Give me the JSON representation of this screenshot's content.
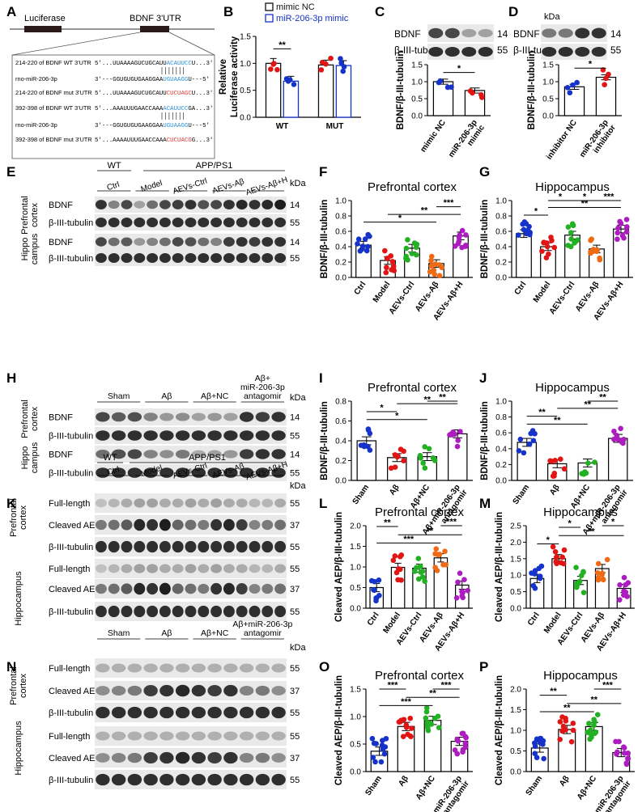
{
  "panel_letters": [
    "A",
    "B",
    "C",
    "D",
    "E",
    "F",
    "G",
    "H",
    "I",
    "J",
    "K",
    "L",
    "M",
    "N",
    "O",
    "P"
  ],
  "colors": {
    "blue": "#1533c9",
    "red": "#e21515",
    "green": "#22b122",
    "orange": "#ee6b14",
    "purple": "#ad1cc1",
    "black": "#111111",
    "seq_blue": "#2a8fd4",
    "seq_red": "#e23a3a",
    "band": "#1e1e1e",
    "blot_bg": "#e9e9e9"
  },
  "icons": [
    "luciferase-gene-bar",
    "utr-bar",
    "western-blot"
  ],
  "panelA": {
    "luciferase": "Luciferase",
    "utr": "BDNF 3'UTR",
    "rows": [
      {
        "label": "214-220 of BDNF WT 3'UTR",
        "pre": "5'...UUAAAAGUCUGCAUU",
        "site": "ACAUUCC",
        "post": "U...3'",
        "site_color": "blue"
      },
      {
        "label": "rno-miR-206-3p",
        "pre": "3'---GGUGUGUGAAGGAA",
        "site": "UGUAAGG",
        "post": "U---5'",
        "site_color": "blue"
      },
      {
        "label": "214-220 of BDNF mut 3'UTR",
        "pre": "5'...UUAAAAGUCUGCAUU",
        "site": "CUCUAGC",
        "post": "U...3'",
        "site_color": "red"
      },
      {
        "label": "392-398 of BDNF  WT 3'UTR",
        "pre": "5'...AAAUUUGAACCAAA",
        "site": "ACAUUCC",
        "post": "GA...3'",
        "site_color": "blue"
      },
      {
        "label": "rno-miR-206-3p",
        "pre": "3'---GGUGUGUGAAGGAA",
        "site": "UGUAAGG",
        "post": "U---5'",
        "site_color": "blue"
      },
      {
        "label": "392-398 of BDNF mut 3'UTR",
        "pre": "5'...AAAAUUUGAACCAAA",
        "site": "CUCUACG",
        "post": "G...3'",
        "site_color": "red"
      }
    ]
  },
  "blots": {
    "kda": "kDa",
    "C": {
      "bands": [
        {
          "name": "BDNF",
          "kda": "14"
        },
        {
          "name": "β-III-tubulin",
          "kda": "55"
        }
      ]
    },
    "D": {
      "bands": [
        {
          "name": "BDNF",
          "kda": "14"
        },
        {
          "name": "β-III-tubulin",
          "kda": "55"
        }
      ]
    },
    "E": {
      "top_groups": [
        "WT",
        "APP/PS1"
      ],
      "lanes": [
        "Ctrl",
        "Model",
        "AEVs-Ctrl",
        "AEVs-Aβ",
        "AEVs-Aβ+H"
      ],
      "regions": [
        "Prefrontal cortex",
        "Hippo campus"
      ],
      "bands": [
        {
          "name": "BDNF",
          "kda": "14"
        },
        {
          "name": "β-III-tubulin",
          "kda": "55"
        },
        {
          "name": "BDNF",
          "kda": "14"
        },
        {
          "name": "β-III-tubulin",
          "kda": "55"
        }
      ]
    },
    "H": {
      "lanes": [
        "Sham",
        "Aβ",
        "Aβ+NC",
        "Aβ+ miR-206-3p antagomir"
      ],
      "regions": [
        "Prefrontal cortex",
        "Hippo campus"
      ],
      "bands": [
        {
          "name": "BDNF",
          "kda": "14"
        },
        {
          "name": "β-III-tubulin",
          "kda": "55"
        },
        {
          "name": "BDNF",
          "kda": "14"
        },
        {
          "name": "β-III-tubulin",
          "kda": "55"
        }
      ]
    },
    "K": {
      "top_groups": [
        "WT",
        "APP/PS1"
      ],
      "lanes": [
        "Ctrl",
        "Model",
        "AEVs-Ctrl",
        "AEVs-Aβ",
        "AEVs-Aβ+H"
      ],
      "regions": [
        "Prefrontal cortex",
        "Hippocampus"
      ],
      "bands": [
        {
          "name": "Full-length",
          "kda": "55"
        },
        {
          "name": "Cleaved AEP",
          "kda": "37"
        },
        {
          "name": "β-III-tubulin",
          "kda": "55"
        },
        {
          "name": "Full-length",
          "kda": "55"
        },
        {
          "name": "Cleaved AEP",
          "kda": "37"
        },
        {
          "name": "β-III-tubulin",
          "kda": "55"
        }
      ]
    },
    "N": {
      "lanes": [
        "Sham",
        "Aβ",
        "Aβ+NC",
        "Aβ+miR-206-3p antagomir"
      ],
      "regions": [
        "Prefrontal cortex",
        "Hippocampus"
      ],
      "bands": [
        {
          "name": "Full-length",
          "kda": "55"
        },
        {
          "name": "Cleaved AEP",
          "kda": "37"
        },
        {
          "name": "β-III-tubulin",
          "kda": "55"
        },
        {
          "name": "Full-length",
          "kda": "55"
        },
        {
          "name": "Cleaved AEP",
          "kda": "37"
        },
        {
          "name": "β-III-tubulin",
          "kda": "55"
        }
      ]
    }
  },
  "chart_data": [
    {
      "panel": "B",
      "type": "bar",
      "ylabel": "Relative Luciferase activity",
      "ylim": [
        0,
        1.5
      ],
      "yticks": [
        0,
        0.5,
        1.0,
        1.5
      ],
      "categories": [
        "WT",
        "MUT"
      ],
      "legend": [
        {
          "name": "mimic NC",
          "color": "black"
        },
        {
          "name": "miR-206-3p mimic",
          "color": "blue"
        }
      ],
      "series": [
        {
          "name": "mimic NC",
          "color": "black",
          "values": [
            1.0,
            0.97
          ]
        },
        {
          "name": "miR-206-3p mimic",
          "color": "blue",
          "values": [
            0.67,
            0.96
          ]
        }
      ],
      "sig": [
        {
          "label": "**",
          "between": [
            0,
            1
          ]
        }
      ]
    },
    {
      "panel": "C",
      "type": "bar",
      "ylabel": "BDNF/β-III-tubulin",
      "ylim": [
        0,
        1.5
      ],
      "yticks": [
        0,
        0.5,
        1.0,
        1.5
      ],
      "categories": [
        "mimic NC",
        "miR-206-3p mimic"
      ],
      "values": [
        1.0,
        0.74
      ],
      "colors": [
        "blue",
        "red"
      ],
      "sig": [
        {
          "label": "*",
          "between": [
            0,
            1
          ]
        }
      ]
    },
    {
      "panel": "D",
      "type": "bar",
      "ylabel": "BDNF/β-III-tubulin",
      "ylim": [
        0,
        1.5
      ],
      "yticks": [
        0,
        0.5,
        1.0,
        1.5
      ],
      "categories": [
        "inhibitor NC",
        "miR-206-3p inhibitor"
      ],
      "values": [
        0.85,
        1.13
      ],
      "colors": [
        "blue",
        "red"
      ],
      "sig": [
        {
          "label": "*",
          "between": [
            0,
            1
          ]
        }
      ]
    },
    {
      "panel": "F",
      "type": "bar",
      "title": "Prefrontal cortex",
      "ylabel": "BDNF/β-III-tubulin",
      "ylim": [
        0,
        1.0
      ],
      "yticks": [
        0,
        0.2,
        0.4,
        0.6,
        0.8,
        1.0
      ],
      "categories": [
        "Ctrl",
        "Model",
        "AEVs-Ctrl",
        "AEVs-Aβ",
        "AEVs-Aβ+H"
      ],
      "values": [
        0.42,
        0.22,
        0.38,
        0.18,
        0.54
      ],
      "colors": [
        "blue",
        "red",
        "green",
        "orange",
        "purple"
      ],
      "sig": [
        {
          "label": "*",
          "between": [
            0,
            3
          ]
        },
        {
          "label": "**",
          "between": [
            1,
            4
          ]
        },
        {
          "label": "***",
          "between": [
            3,
            4
          ]
        }
      ]
    },
    {
      "panel": "G",
      "type": "bar",
      "title": "Hippocampus",
      "ylabel": "BDNF/β-III-tubulin",
      "ylim": [
        0,
        1.0
      ],
      "yticks": [
        0,
        0.2,
        0.4,
        0.6,
        0.8,
        1.0
      ],
      "categories": [
        "Ctrl",
        "Model",
        "AEVs-Ctrl",
        "AEVs-Aβ",
        "AEVs-Aβ+H"
      ],
      "values": [
        0.57,
        0.4,
        0.55,
        0.37,
        0.63
      ],
      "colors": [
        "blue",
        "red",
        "green",
        "orange",
        "purple"
      ],
      "sig": [
        {
          "label": "*",
          "between": [
            0,
            1
          ]
        },
        {
          "label": "**",
          "between": [
            1,
            4
          ]
        },
        {
          "label": "*",
          "between": [
            1,
            2
          ]
        },
        {
          "label": "*",
          "between": [
            2,
            3
          ]
        },
        {
          "label": "***",
          "between": [
            3,
            4
          ]
        }
      ]
    },
    {
      "panel": "I",
      "type": "bar",
      "title": "Prefrontal cortex",
      "ylabel": "BDNF/β-III-tubulin",
      "ylim": [
        0,
        0.8
      ],
      "yticks": [
        0,
        0.2,
        0.4,
        0.6,
        0.8
      ],
      "categories": [
        "Sham",
        "Aβ",
        "Aβ+NC",
        "Aβ+miR-206-3p antagomir"
      ],
      "values": [
        0.4,
        0.23,
        0.24,
        0.47
      ],
      "colors": [
        "blue",
        "red",
        "green",
        "purple"
      ],
      "sig": [
        {
          "label": "*",
          "between": [
            0,
            2
          ]
        },
        {
          "label": "*",
          "between": [
            0,
            1
          ]
        },
        {
          "label": "**",
          "between": [
            1,
            3
          ]
        },
        {
          "label": "**",
          "between": [
            2,
            3
          ]
        }
      ]
    },
    {
      "panel": "J",
      "type": "bar",
      "title": "Hippocampus",
      "ylabel": "BDNF/β-III-tubulin",
      "ylim": [
        0,
        1.0
      ],
      "yticks": [
        0,
        0.2,
        0.4,
        0.6,
        0.8,
        1.0
      ],
      "categories": [
        "Sham",
        "Aβ",
        "Aβ+NC",
        "Aβ+miR-206-3p antagomir"
      ],
      "values": [
        0.48,
        0.21,
        0.22,
        0.53
      ],
      "colors": [
        "blue",
        "red",
        "green",
        "purple"
      ],
      "sig": [
        {
          "label": "**",
          "between": [
            0,
            2
          ]
        },
        {
          "label": "**",
          "between": [
            0,
            1
          ]
        },
        {
          "label": "**",
          "between": [
            1,
            3
          ]
        },
        {
          "label": "**",
          "between": [
            2,
            3
          ]
        }
      ]
    },
    {
      "panel": "L",
      "type": "bar",
      "title": "Prefrontal cortex",
      "ylabel": "Cleaved AEP/β-III-tubulin",
      "ylim": [
        0,
        2.0
      ],
      "yticks": [
        0,
        0.5,
        1.0,
        1.5,
        2.0
      ],
      "categories": [
        "Ctrl",
        "Model",
        "AEVs-Ctrl",
        "AEVs-Aβ",
        "AEVs-Aβ+H"
      ],
      "values": [
        0.5,
        0.99,
        0.97,
        1.22,
        0.56
      ],
      "colors": [
        "blue",
        "red",
        "green",
        "orange",
        "purple"
      ],
      "sig": [
        {
          "label": "***",
          "between": [
            0,
            3
          ]
        },
        {
          "label": "**",
          "between": [
            1,
            4
          ]
        },
        {
          "label": "**",
          "between": [
            0,
            1
          ]
        },
        {
          "label": "***",
          "between": [
            3,
            4
          ]
        }
      ]
    },
    {
      "panel": "M",
      "type": "bar",
      "title": "Hippocampus",
      "ylabel": "Cleaved AEP/β-III-tubulin",
      "ylim": [
        0,
        2.5
      ],
      "yticks": [
        0,
        0.5,
        1.0,
        1.5,
        2.0,
        2.5
      ],
      "categories": [
        "Ctrl",
        "Model",
        "AEVs-Ctrl",
        "AEVs-Aβ",
        "AEVs-Aβ+H"
      ],
      "values": [
        0.9,
        1.5,
        0.84,
        1.2,
        0.6
      ],
      "colors": [
        "blue",
        "red",
        "green",
        "orange",
        "purple"
      ],
      "sig": [
        {
          "label": "*",
          "between": [
            0,
            1
          ]
        },
        {
          "label": "**",
          "between": [
            1,
            4
          ]
        },
        {
          "label": "*",
          "between": [
            1,
            2
          ]
        },
        {
          "label": "*",
          "between": [
            3,
            4
          ]
        }
      ]
    },
    {
      "panel": "O",
      "type": "bar",
      "title": "Prefrontal cortex",
      "ylabel": "Cleaved AEP/β-III-tubulin",
      "ylim": [
        0,
        1.5
      ],
      "yticks": [
        0,
        0.5,
        1.0,
        1.5
      ],
      "categories": [
        "Sham",
        "Aβ",
        "Aβ+NC",
        "Aβ+miR-206-3p antagomir"
      ],
      "values": [
        0.37,
        0.82,
        0.93,
        0.55
      ],
      "colors": [
        "blue",
        "red",
        "green",
        "purple"
      ],
      "sig": [
        {
          "label": "***",
          "between": [
            0,
            2
          ]
        },
        {
          "label": "**",
          "between": [
            1,
            3
          ]
        },
        {
          "label": "***",
          "between": [
            0,
            1
          ]
        },
        {
          "label": "***",
          "between": [
            2,
            3
          ]
        }
      ]
    },
    {
      "panel": "P",
      "type": "bar",
      "title": "Hippocampus",
      "ylabel": "Cleaved AEP/β-III-tubulin",
      "ylim": [
        0,
        2.0
      ],
      "yticks": [
        0,
        0.5,
        1.0,
        1.5,
        2.0
      ],
      "categories": [
        "Sham",
        "Aβ",
        "Aβ+NC",
        "Aβ+miR-206-3p antagomir"
      ],
      "values": [
        0.57,
        1.02,
        1.09,
        0.46
      ],
      "colors": [
        "blue",
        "red",
        "green",
        "purple"
      ],
      "sig": [
        {
          "label": "**",
          "between": [
            0,
            2
          ]
        },
        {
          "label": "**",
          "between": [
            1,
            3
          ]
        },
        {
          "label": "**",
          "between": [
            0,
            1
          ]
        },
        {
          "label": "***",
          "between": [
            2,
            3
          ]
        }
      ]
    }
  ]
}
